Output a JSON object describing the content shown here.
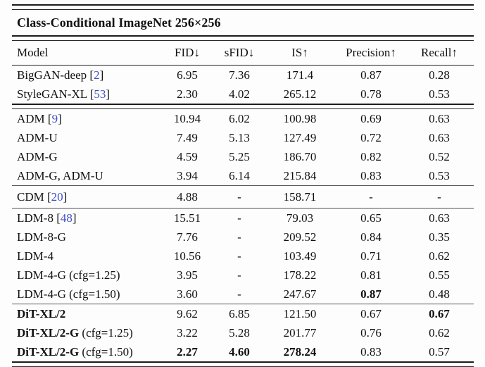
{
  "table": {
    "title": "Class-Conditional ImageNet 256×256",
    "columns": [
      "Model",
      "FID↓",
      "sFID↓",
      "IS↑",
      "Precision↑",
      "Recall↑"
    ],
    "citation_color": "#4050c8",
    "cite_open": "[",
    "cite_close": "]",
    "sections": [
      {
        "rule_after": "double",
        "rows": [
          {
            "model": "BigGAN-deep",
            "cite": "2",
            "values": [
              "6.95",
              "7.36",
              "171.4",
              "0.87",
              "0.28"
            ]
          },
          {
            "model": "StyleGAN-XL",
            "cite": "53",
            "values": [
              "2.30",
              "4.02",
              "265.12",
              "0.78",
              "0.53"
            ]
          }
        ]
      },
      {
        "rule_after": "section",
        "rows": [
          {
            "model": "ADM",
            "cite": "9",
            "values": [
              "10.94",
              "6.02",
              "100.98",
              "0.69",
              "0.63"
            ]
          },
          {
            "model": "ADM-U",
            "values": [
              "7.49",
              "5.13",
              "127.49",
              "0.72",
              "0.63"
            ]
          },
          {
            "model": "ADM-G",
            "values": [
              "4.59",
              "5.25",
              "186.70",
              "0.82",
              "0.52"
            ]
          },
          {
            "model": "ADM-G, ADM-U",
            "values": [
              "3.94",
              "6.14",
              "215.84",
              "0.83",
              "0.53"
            ]
          }
        ]
      },
      {
        "rule_after": "section",
        "rows": [
          {
            "model": "CDM",
            "cite": "20",
            "pad": true,
            "values": [
              "4.88",
              "-",
              "158.71",
              "-",
              "-"
            ]
          }
        ]
      },
      {
        "rule_after": "section",
        "rows": [
          {
            "model": "LDM-8",
            "cite": "48",
            "values": [
              "15.51",
              "-",
              "79.03",
              "0.65",
              "0.63"
            ]
          },
          {
            "model": "LDM-8-G",
            "values": [
              "7.76",
              "-",
              "209.52",
              "0.84",
              "0.35"
            ]
          },
          {
            "model": "LDM-4",
            "values": [
              "10.56",
              "-",
              "103.49",
              "0.71",
              "0.62"
            ]
          },
          {
            "model": "LDM-4-G (cfg=1.25)",
            "values": [
              "3.95",
              "-",
              "178.22",
              "0.81",
              "0.55"
            ]
          },
          {
            "model": "LDM-4-G (cfg=1.50)",
            "values": [
              "3.60",
              "-",
              "247.67",
              "0.87",
              "0.48"
            ],
            "bold_values": [
              3
            ]
          }
        ]
      },
      {
        "rule_after": "none",
        "rows": [
          {
            "model": "DiT-XL/2",
            "model_bold": true,
            "values": [
              "9.62",
              "6.85",
              "121.50",
              "0.67",
              "0.67"
            ],
            "bold_values": [
              4
            ]
          },
          {
            "model": "DiT-XL/2-G",
            "model_bold": true,
            "model_suffix": " (cfg=1.25)",
            "values": [
              "3.22",
              "5.28",
              "201.77",
              "0.76",
              "0.62"
            ]
          },
          {
            "model": "DiT-XL/2-G",
            "model_bold": true,
            "model_suffix": " (cfg=1.50)",
            "values": [
              "2.27",
              "4.60",
              "278.24",
              "0.83",
              "0.57"
            ],
            "bold_values": [
              0,
              1,
              2
            ]
          }
        ]
      }
    ]
  }
}
